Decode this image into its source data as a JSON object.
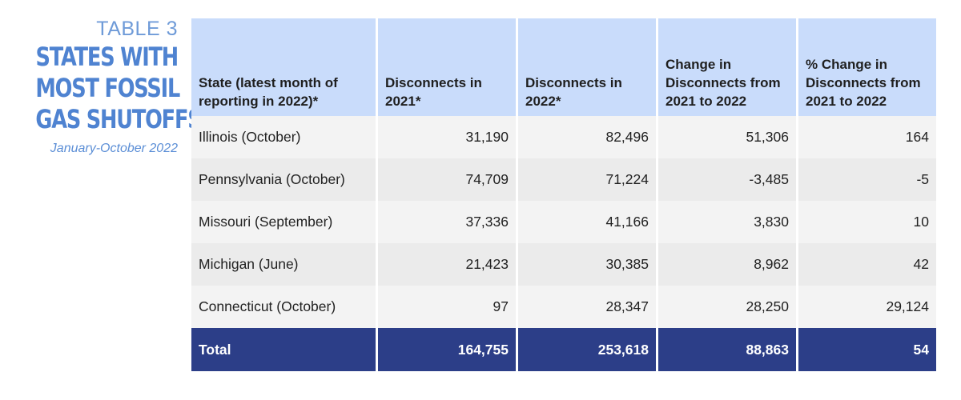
{
  "sidebar": {
    "label": "TABLE 3",
    "title_lines": [
      "STATES WITH",
      "MOST FOSSIL",
      "GAS SHUTOFFS"
    ],
    "subtitle": "January-October 2022"
  },
  "table": {
    "headers": [
      "State (latest month of reporting in 2022)*",
      "Disconnects in 2021*",
      "Disconnects in 2022*",
      "Change in Disconnects from 2021 to 2022",
      "% Change in Disconnects from 2021 to 2022"
    ],
    "rows": [
      [
        "Illinois (October)",
        "31,190",
        "82,496",
        "51,306",
        "164"
      ],
      [
        "Pennsylvania (October)",
        "74,709",
        "71,224",
        "-3,485",
        "-5"
      ],
      [
        "Missouri (September)",
        "37,336",
        "41,166",
        "3,830",
        "10"
      ],
      [
        "Michigan (June)",
        "21,423",
        "30,385",
        "8,962",
        "42"
      ],
      [
        "Connecticut (October)",
        "97",
        "28,347",
        "28,250",
        "29,124"
      ]
    ],
    "total": [
      "Total",
      "164,755",
      "253,618",
      "88,863",
      "54"
    ]
  },
  "colors": {
    "header_bg": "#c9dcfb",
    "total_bg": "#2c3e88",
    "title": "#4f83d1"
  }
}
